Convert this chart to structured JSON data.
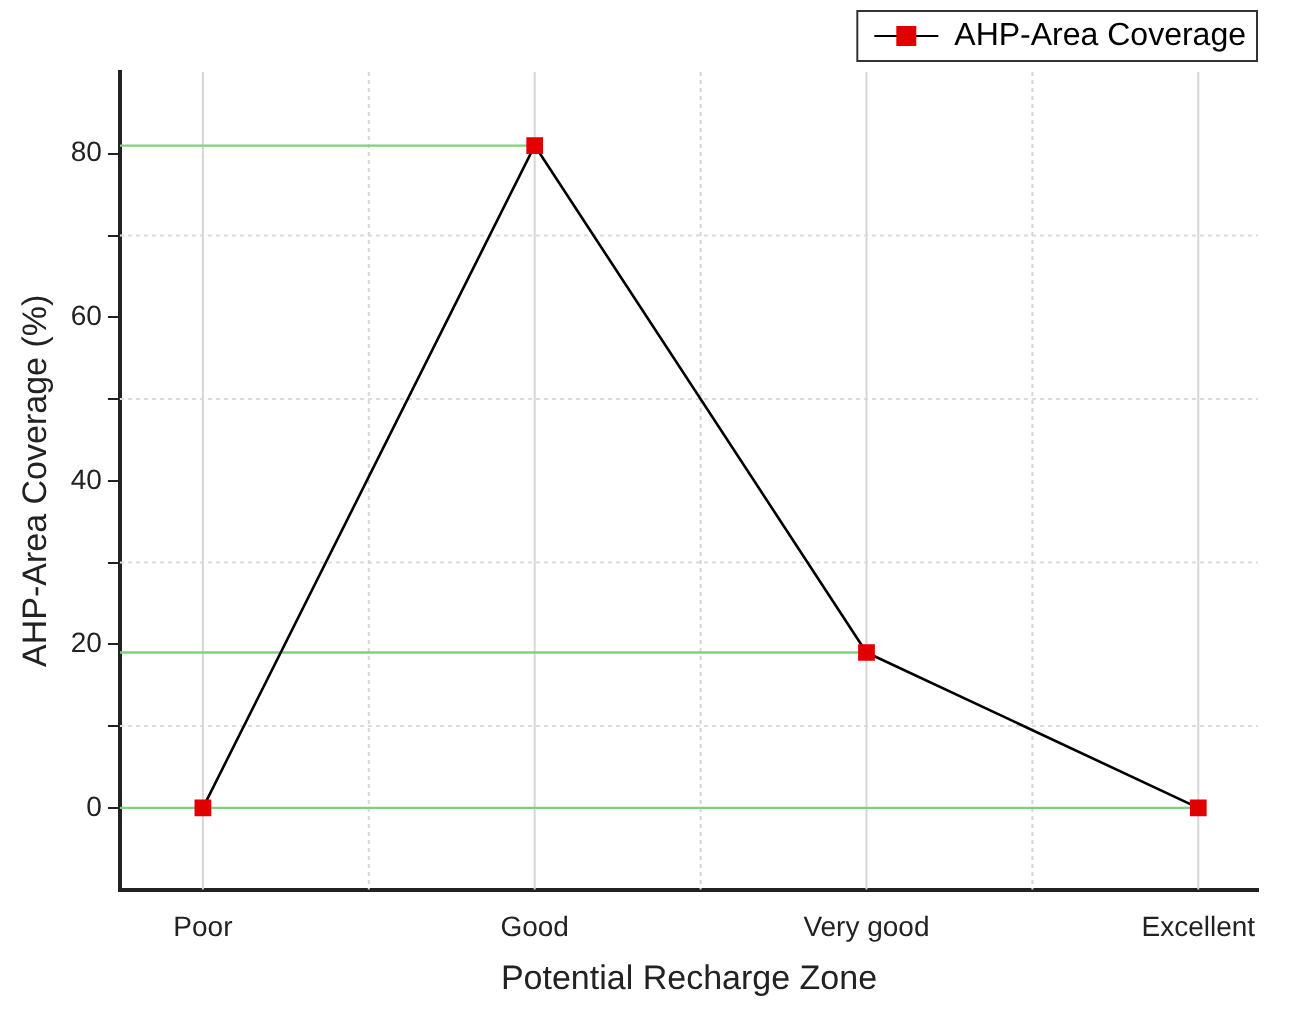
{
  "chart_data": {
    "type": "line",
    "xlabel": "Potential Recharge Zone",
    "ylabel": "AHP-Area Coverage (%)",
    "categories": [
      "Poor",
      "Good",
      "Very good",
      "Excellent"
    ],
    "series": [
      {
        "name": "AHP-Area Coverage",
        "color": "#e00000",
        "values": [
          0,
          81,
          19,
          0
        ]
      }
    ],
    "ylim": [
      -10,
      90
    ],
    "yticks": [
      0,
      {
        "value": 10,
        "label": null
      },
      20,
      {
        "value": 30,
        "label": null
      },
      40,
      {
        "value": 50,
        "label": null
      },
      60,
      {
        "value": 70,
        "label": null
      },
      80
    ],
    "ref_lines": [
      {
        "axis": "y",
        "value": 81,
        "color": "#7fd07f"
      },
      {
        "axis": "y",
        "value": 19,
        "color": "#7fd07f"
      },
      {
        "axis": "y",
        "value": 0,
        "color": "#7fd07f"
      }
    ],
    "grid": true,
    "legend": "top right",
    "marker": "square",
    "line_style": "solid"
  }
}
